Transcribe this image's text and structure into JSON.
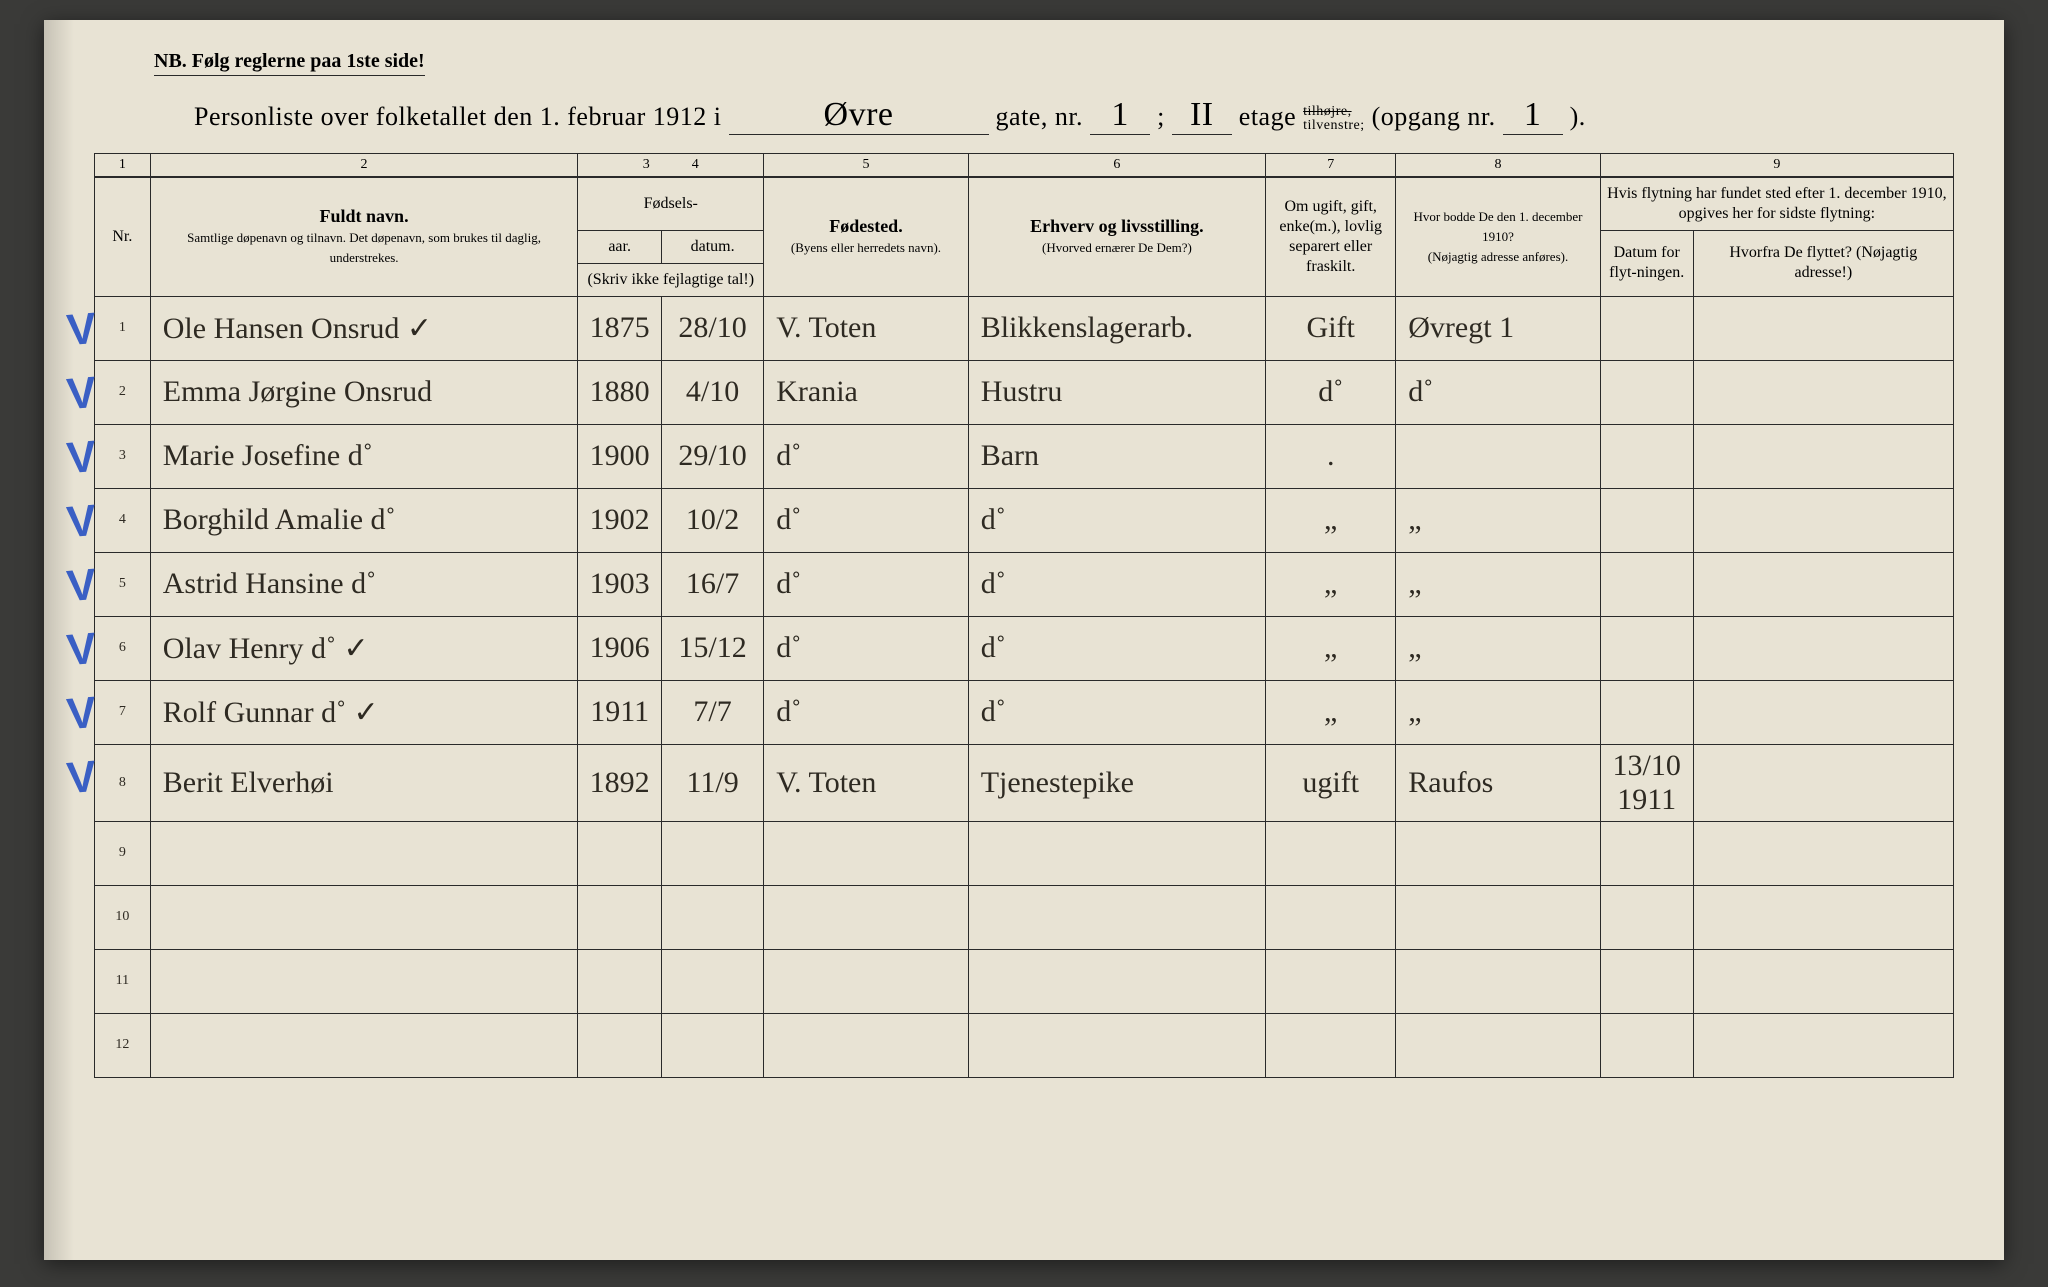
{
  "nb": "NB.  Følg reglerne paa 1ste side!",
  "title": {
    "prefix": "Personliste over folketallet den 1. februar 1912 i",
    "street": "Øvre",
    "gate_label": "gate, nr.",
    "gate_nr": "1",
    "semicolon": ";",
    "etage_val": "II",
    "etage_label": "etage",
    "side_strike": "tilhøjre,",
    "side_keep": "tilvenstre;",
    "opgang_label": "(opgang  nr.",
    "opgang_nr": "1",
    "opgang_close": ")."
  },
  "colnums": [
    "1",
    "2",
    "3",
    "4",
    "5",
    "6",
    "7",
    "8",
    "9"
  ],
  "headers": {
    "nr": "Nr.",
    "name_b": "Fuldt navn.",
    "name_sub": "Samtlige døpenavn og tilnavn.  Det døpenavn, som brukes til daglig, understrekes.",
    "fodsels": "Fødsels-",
    "aar": "aar.",
    "datum": "datum.",
    "aar_sub": "(Skriv ikke fejlagtige tal!)",
    "fodested": "Fødested.",
    "fodested_sub": "(Byens eller herredets navn).",
    "erhverv": "Erhverv og livsstilling.",
    "erhverv_sub": "(Hvorved ernærer De Dem?)",
    "gift": "Om ugift, gift, enke(m.), lovlig separert eller fraskilt.",
    "addr1910": "Hvor bodde De den 1. december 1910?",
    "addr1910_sub": "(Nøjagtig adresse anføres).",
    "move": "Hvis flytning har fundet sted efter 1. december 1910, opgives her for sidste flytning:",
    "move_date": "Datum for flyt-ningen.",
    "move_from": "Hvorfra De flyttet? (Nøjagtig adresse!)"
  },
  "rows": [
    {
      "nr": "1",
      "check": true,
      "name": "Ole Hansen Onsrud  ✓",
      "yr": "1875",
      "date": "28/10",
      "place": "V. Toten",
      "occ": "Blikkenslagerarb.",
      "mar": "Gift",
      "a1910": "Øvregt 1",
      "md": "",
      "mf": ""
    },
    {
      "nr": "2",
      "check": true,
      "name": "Emma Jørgine Onsrud",
      "yr": "1880",
      "date": "4/10",
      "place": "Krania",
      "occ": "Hustru",
      "mar": "d˚",
      "a1910": "d˚",
      "md": "",
      "mf": ""
    },
    {
      "nr": "3",
      "check": true,
      "name": "Marie Josefine   d˚",
      "yr": "1900",
      "date": "29/10",
      "place": "d˚",
      "occ": "Barn",
      "mar": ".",
      "a1910": "",
      "md": "",
      "mf": ""
    },
    {
      "nr": "4",
      "check": true,
      "name": "Borghild Amalie  d˚",
      "yr": "1902",
      "date": "10/2",
      "place": "d˚",
      "occ": "d˚",
      "mar": "„",
      "a1910": "„",
      "md": "",
      "mf": ""
    },
    {
      "nr": "5",
      "check": true,
      "name": "Astrid Hansine   d˚",
      "yr": "1903",
      "date": "16/7",
      "place": "d˚",
      "occ": "d˚",
      "mar": "„",
      "a1910": "„",
      "md": "",
      "mf": ""
    },
    {
      "nr": "6",
      "check": true,
      "name": "Olav Henry   d˚  ✓",
      "yr": "1906",
      "date": "15/12",
      "place": "d˚",
      "occ": "d˚",
      "mar": "„",
      "a1910": "„",
      "md": "",
      "mf": ""
    },
    {
      "nr": "7",
      "check": true,
      "name": "Rolf Gunnar  d˚  ✓",
      "yr": "1911",
      "date": "7/7",
      "place": "d˚",
      "occ": "d˚",
      "mar": "„",
      "a1910": "„",
      "md": "",
      "mf": ""
    },
    {
      "nr": "8",
      "check": true,
      "name": "Berit Elverhøi",
      "yr": "1892",
      "date": "11/9",
      "place": "V. Toten",
      "occ": "Tjenestepike",
      "mar": "ugift",
      "a1910": "Raufos",
      "md": "13/10 1911",
      "mf": ""
    },
    {
      "nr": "9",
      "check": false,
      "name": "",
      "yr": "",
      "date": "",
      "place": "",
      "occ": "",
      "mar": "",
      "a1910": "",
      "md": "",
      "mf": ""
    },
    {
      "nr": "10",
      "check": false,
      "name": "",
      "yr": "",
      "date": "",
      "place": "",
      "occ": "",
      "mar": "",
      "a1910": "",
      "md": "",
      "mf": ""
    },
    {
      "nr": "11",
      "check": false,
      "name": "",
      "yr": "",
      "date": "",
      "place": "",
      "occ": "",
      "mar": "",
      "a1910": "",
      "md": "",
      "mf": ""
    },
    {
      "nr": "12",
      "check": false,
      "name": "",
      "yr": "",
      "date": "",
      "place": "",
      "occ": "",
      "mar": "",
      "a1910": "",
      "md": "",
      "mf": ""
    }
  ]
}
